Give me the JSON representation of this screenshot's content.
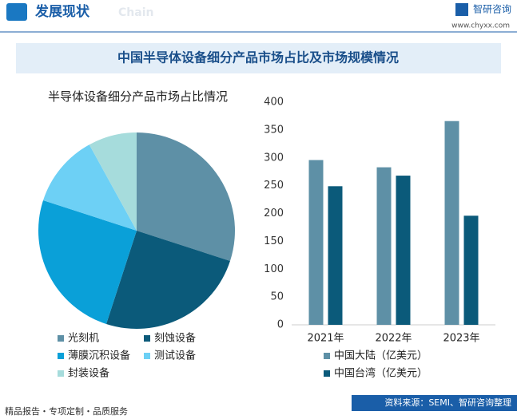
{
  "header": {
    "section": "发展现状",
    "section_en": "Chain",
    "brand": "智研咨询",
    "url": "www.chyxx.com"
  },
  "title": "中国半导体设备细分产品市场占比及市场规模情况",
  "chart_data": [
    {
      "type": "pie",
      "title": "半导体设备细分产品市场占比情况",
      "categories": [
        "光刻机",
        "刻蚀设备",
        "薄膜沉积设备",
        "测试设备",
        "封装设备"
      ],
      "values": [
        30,
        25,
        25,
        12,
        8
      ],
      "colors": [
        "#5e90a6",
        "#0b5a7a",
        "#0aa0d8",
        "#6dd0f5",
        "#a6dcdc"
      ]
    },
    {
      "type": "bar",
      "categories": [
        "2021年",
        "2022年",
        "2023年"
      ],
      "series": [
        {
          "name": "中国大陆（亿美元）",
          "color": "#5e90a6",
          "values": [
            296,
            283,
            366
          ]
        },
        {
          "name": "中国台湾（亿美元）",
          "color": "#0b5a7a",
          "values": [
            249,
            268,
            196
          ]
        }
      ],
      "ylim": [
        0,
        400
      ],
      "yticks": [
        0,
        50,
        100,
        150,
        200,
        250,
        300,
        350,
        400
      ],
      "grid": false
    }
  ],
  "footer": {
    "left": "精品报告・专项定制・品质服务",
    "source": "资料来源：SEMI、智研咨询整理"
  }
}
